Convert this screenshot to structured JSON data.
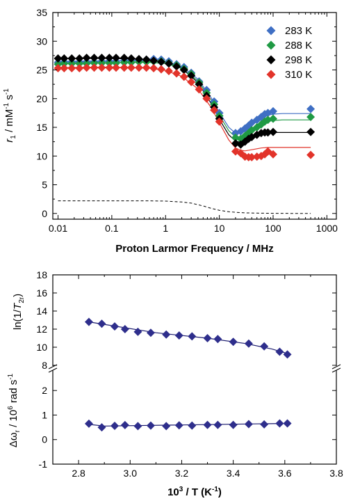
{
  "chart_data": [
    {
      "type": "scatter",
      "xlabel": "Proton Larmor Frequency / MHz",
      "ylabel": "r_1 / mM^-1 s^-1",
      "xscale": "log",
      "xlim": [
        0.008,
        1500
      ],
      "ylim": [
        -1,
        35
      ],
      "xticks": [
        0.01,
        0.1,
        1,
        10,
        100,
        1000
      ],
      "xtick_labels": [
        "0.01",
        "0.1",
        "1",
        "10",
        "100",
        "1000"
      ],
      "yticks": [
        0,
        5,
        10,
        15,
        20,
        25,
        30,
        35
      ],
      "legend_position": "top-right",
      "grid": false,
      "series": [
        {
          "name": "283 K",
          "color": "#3f6fc4",
          "x": [
            0.01,
            0.013,
            0.018,
            0.025,
            0.034,
            0.047,
            0.065,
            0.09,
            0.12,
            0.17,
            0.23,
            0.32,
            0.44,
            0.6,
            0.83,
            1.15,
            1.6,
            2.2,
            3.0,
            4.2,
            5.8,
            8.0,
            10,
            20,
            25,
            30,
            35,
            40,
            50,
            60,
            70,
            80,
            100,
            500
          ],
          "y": [
            26.3,
            26.4,
            26.4,
            26.4,
            26.4,
            26.4,
            26.5,
            26.5,
            26.5,
            26.6,
            26.6,
            26.7,
            26.8,
            26.9,
            26.8,
            26.5,
            26.0,
            25.5,
            24.5,
            23.0,
            21.5,
            19.5,
            17.5,
            14.0,
            14.3,
            14.8,
            15.3,
            15.8,
            16.3,
            16.8,
            17.3,
            17.5,
            17.8,
            18.2
          ]
        },
        {
          "name": "288 K",
          "color": "#1f9a44",
          "x": [
            0.01,
            0.013,
            0.018,
            0.025,
            0.034,
            0.047,
            0.065,
            0.09,
            0.12,
            0.17,
            0.23,
            0.32,
            0.44,
            0.6,
            0.83,
            1.15,
            1.6,
            2.2,
            3.0,
            4.2,
            5.8,
            8.0,
            10,
            20,
            25,
            30,
            35,
            40,
            50,
            60,
            70,
            80,
            100,
            500
          ],
          "y": [
            26.0,
            26.1,
            26.1,
            26.1,
            26.1,
            26.2,
            26.2,
            26.2,
            26.2,
            26.3,
            26.3,
            26.4,
            26.4,
            26.5,
            26.5,
            26.2,
            25.8,
            25.2,
            24.3,
            22.8,
            21.0,
            19.0,
            17.0,
            13.2,
            13.0,
            13.5,
            14.0,
            14.5,
            15.0,
            15.5,
            16.0,
            16.3,
            16.5,
            16.8
          ]
        },
        {
          "name": "298 K",
          "color": "#000000",
          "x": [
            0.01,
            0.013,
            0.018,
            0.025,
            0.034,
            0.047,
            0.065,
            0.09,
            0.12,
            0.17,
            0.23,
            0.32,
            0.44,
            0.6,
            0.83,
            1.15,
            1.6,
            2.2,
            3.0,
            4.2,
            5.8,
            8.0,
            10,
            20,
            25,
            30,
            35,
            40,
            50,
            60,
            70,
            80,
            100,
            500
          ],
          "y": [
            27.0,
            27.0,
            27.0,
            27.0,
            27.1,
            27.1,
            27.1,
            27.1,
            27.1,
            27.1,
            27.0,
            26.9,
            26.8,
            26.6,
            26.4,
            26.1,
            25.6,
            25.0,
            24.0,
            22.5,
            20.5,
            18.5,
            16.5,
            12.2,
            12.0,
            12.5,
            13.0,
            13.3,
            13.7,
            14.0,
            14.1,
            14.1,
            14.2,
            14.2
          ]
        },
        {
          "name": "310 K",
          "color": "#e2332a",
          "x": [
            0.01,
            0.013,
            0.018,
            0.025,
            0.034,
            0.047,
            0.065,
            0.09,
            0.12,
            0.17,
            0.23,
            0.32,
            0.44,
            0.6,
            0.83,
            1.15,
            1.6,
            2.2,
            3.0,
            4.2,
            5.8,
            8.0,
            10,
            20,
            25,
            30,
            35,
            40,
            50,
            60,
            70,
            80,
            100,
            500
          ],
          "y": [
            25.3,
            25.3,
            25.3,
            25.3,
            25.4,
            25.4,
            25.4,
            25.4,
            25.4,
            25.4,
            25.4,
            25.4,
            25.4,
            25.3,
            25.1,
            24.8,
            24.4,
            23.8,
            22.9,
            21.6,
            20.0,
            18.0,
            16.0,
            10.8,
            10.5,
            9.9,
            9.8,
            9.8,
            9.9,
            10.0,
            10.3,
            10.8,
            10.3,
            10.2
          ]
        }
      ],
      "fit_lines": [
        {
          "color": "#3f6fc4",
          "x": [
            0.01,
            0.1,
            0.5,
            1,
            2,
            4,
            7,
            10,
            15,
            20,
            25,
            30,
            40,
            60,
            80,
            100,
            150,
            500
          ],
          "y": [
            26.5,
            26.6,
            26.6,
            26.4,
            25.6,
            23.4,
            20.2,
            17.6,
            15.0,
            14.0,
            14.2,
            14.7,
            15.6,
            16.6,
            17.1,
            17.3,
            17.4,
            17.4
          ]
        },
        {
          "color": "#1f9a44",
          "x": [
            0.01,
            0.1,
            0.5,
            1,
            2,
            4,
            7,
            10,
            15,
            20,
            25,
            30,
            40,
            60,
            80,
            100,
            150,
            500
          ],
          "y": [
            26.2,
            26.3,
            26.3,
            26.1,
            25.3,
            23.1,
            19.8,
            17.1,
            14.4,
            13.3,
            13.4,
            13.8,
            14.6,
            15.5,
            16.0,
            16.2,
            16.3,
            16.3
          ]
        },
        {
          "color": "#000000",
          "x": [
            0.01,
            0.1,
            0.5,
            1,
            2,
            4,
            7,
            10,
            15,
            20,
            25,
            30,
            40,
            60,
            80,
            100,
            150,
            500
          ],
          "y": [
            27.0,
            27.0,
            26.8,
            26.4,
            25.3,
            22.8,
            19.2,
            16.4,
            13.7,
            12.6,
            12.4,
            12.6,
            13.2,
            13.8,
            14.0,
            14.1,
            14.1,
            14.1
          ]
        },
        {
          "color": "#e2332a",
          "x": [
            0.01,
            0.1,
            0.5,
            1,
            2,
            4,
            7,
            10,
            15,
            20,
            25,
            30,
            40,
            60,
            80,
            100,
            150,
            500
          ],
          "y": [
            25.4,
            25.5,
            25.3,
            24.9,
            23.9,
            21.7,
            18.5,
            15.8,
            12.8,
            11.4,
            11.0,
            10.9,
            11.1,
            11.4,
            11.5,
            11.5,
            11.5,
            11.5
          ]
        }
      ],
      "reference_line": {
        "style": "dashed",
        "color": "#000000",
        "x": [
          0.01,
          0.1,
          0.5,
          1,
          2,
          3,
          5,
          7,
          10,
          15,
          20,
          30,
          50,
          100,
          500
        ],
        "y": [
          2.2,
          2.2,
          2.2,
          2.15,
          2.0,
          1.8,
          1.3,
          0.9,
          0.55,
          0.3,
          0.2,
          0.1,
          0.05,
          0.02,
          0.0
        ]
      }
    },
    {
      "type": "scatter",
      "xlabel": "10^3 / T (K^-1)",
      "xlim": [
        2.7,
        3.8
      ],
      "xticks": [
        2.8,
        3.0,
        3.2,
        3.4,
        3.6,
        3.8
      ],
      "xtick_labels": [
        "2.8",
        "3.0",
        "3.2",
        "3.4",
        "3.6",
        "3.8"
      ],
      "grid": false,
      "panels": [
        {
          "ylabel": "ln(1/T_2r)",
          "ylim": [
            8,
            18
          ],
          "yticks": [
            8,
            10,
            12,
            14,
            16,
            18
          ],
          "series": [
            {
              "color": "#2e2e8c",
              "x": [
                2.84,
                2.89,
                2.94,
                2.98,
                3.03,
                3.08,
                3.14,
                3.19,
                3.24,
                3.3,
                3.34,
                3.4,
                3.46,
                3.52,
                3.58,
                3.61
              ],
              "y": [
                12.8,
                12.6,
                12.3,
                12.0,
                11.7,
                11.6,
                11.4,
                11.3,
                11.2,
                11.0,
                10.9,
                10.6,
                10.4,
                10.1,
                9.5,
                9.2
              ]
            }
          ],
          "fit_line": {
            "x": [
              2.84,
              3.1,
              3.3,
              3.45,
              3.55,
              3.61
            ],
            "y": [
              12.8,
              11.6,
              11.0,
              10.4,
              9.8,
              9.3
            ]
          }
        },
        {
          "ylabel": "Δω_r / 10^6 rad s^-1",
          "ylim": [
            -1,
            2.8
          ],
          "yticks": [
            -1,
            0,
            1,
            2
          ],
          "series": [
            {
              "color": "#2e2e8c",
              "x": [
                2.84,
                2.89,
                2.94,
                2.98,
                3.03,
                3.08,
                3.14,
                3.19,
                3.24,
                3.3,
                3.34,
                3.4,
                3.46,
                3.52,
                3.58,
                3.61
              ],
              "y": [
                0.65,
                0.5,
                0.56,
                0.59,
                0.55,
                0.57,
                0.55,
                0.58,
                0.57,
                0.6,
                0.6,
                0.6,
                0.63,
                0.62,
                0.66,
                0.66
              ]
            }
          ],
          "fit_line": {
            "x": [
              2.84,
              2.9,
              3.61
            ],
            "y": [
              0.62,
              0.55,
              0.66
            ]
          }
        }
      ]
    }
  ]
}
